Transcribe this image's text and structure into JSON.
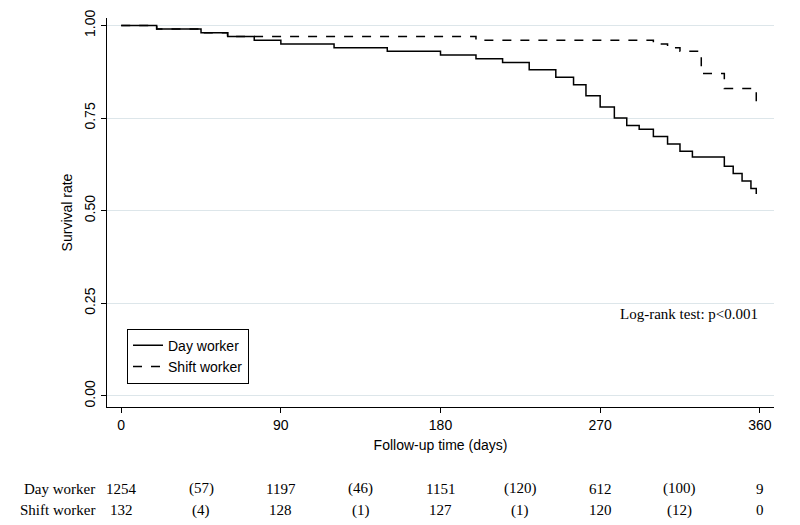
{
  "chart_data": {
    "type": "line",
    "x_label": "Follow-up time (days)",
    "y_label": "Survival rate",
    "x": [
      0,
      20,
      45,
      60,
      75,
      90,
      120,
      150,
      180,
      200,
      215,
      230,
      245,
      255,
      262,
      270,
      278,
      285,
      292,
      300,
      308,
      315,
      322,
      327,
      335,
      340,
      345,
      350,
      355,
      358
    ],
    "series": [
      {
        "name": "Day worker",
        "color": "#000000",
        "line_style": "solid",
        "values": [
          1.0,
          0.99,
          0.98,
          0.97,
          0.96,
          0.95,
          0.94,
          0.93,
          0.92,
          0.91,
          0.9,
          0.88,
          0.86,
          0.84,
          0.81,
          0.78,
          0.75,
          0.73,
          0.72,
          0.7,
          0.68,
          0.66,
          0.645,
          0.645,
          0.645,
          0.62,
          0.6,
          0.58,
          0.56,
          0.545
        ]
      },
      {
        "name": "Shift worker",
        "color": "#000000",
        "line_style": "dash",
        "values": [
          1.0,
          0.99,
          0.98,
          0.97,
          0.97,
          0.97,
          0.97,
          0.97,
          0.97,
          0.96,
          0.96,
          0.96,
          0.96,
          0.96,
          0.96,
          0.96,
          0.96,
          0.96,
          0.96,
          0.95,
          0.94,
          0.93,
          0.93,
          0.87,
          0.87,
          0.83,
          0.83,
          0.83,
          0.83,
          0.78
        ]
      }
    ],
    "xlim": [
      -8,
      368
    ],
    "xticks": [
      0,
      90,
      180,
      270,
      360
    ],
    "ylim": [
      -0.03,
      1.02
    ],
    "yticks": [
      {
        "value": 0,
        "label": "0.00"
      },
      {
        "value": 0.25,
        "label": "0.25"
      },
      {
        "value": 0.5,
        "label": "0.50"
      },
      {
        "value": 0.75,
        "label": "0.75"
      },
      {
        "value": 1,
        "label": "1.00"
      }
    ],
    "grid": "y",
    "legend": "lower left",
    "annotations": [
      {
        "text": "Log-rank test: p<0.001",
        "x": 360,
        "y": 0.22
      }
    ],
    "risk_table": {
      "times": [
        0,
        90,
        180,
        270,
        360
      ],
      "censored_times": [
        45,
        135,
        225,
        315
      ],
      "rows": [
        {
          "name": "Day worker",
          "at_risk": [
            1254,
            1197,
            1151,
            612,
            9
          ],
          "censored": [
            "(57)",
            "(46)",
            "(120)",
            "(100)"
          ]
        },
        {
          "name": "Shift worker",
          "at_risk": [
            132,
            128,
            127,
            120,
            0
          ],
          "censored": [
            "(4)",
            "(1)",
            "(1)",
            "(12)"
          ]
        }
      ]
    }
  }
}
